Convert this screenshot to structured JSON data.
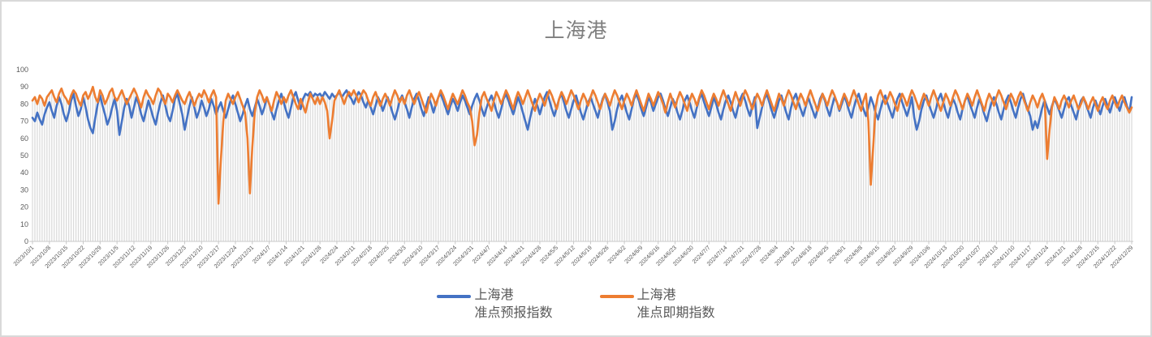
{
  "chart_data": {
    "type": "line",
    "title": "上海港",
    "xlabel": "",
    "ylabel": "",
    "ylim": [
      0,
      100
    ],
    "y_ticks": [
      0,
      10,
      20,
      30,
      40,
      50,
      60,
      70,
      80,
      90,
      100
    ],
    "grid": "vertical-drop-lines",
    "gridline_color": "#dadada",
    "axis_color": "#c8c8c8",
    "tick_label_color": "#595959",
    "legend_position": "bottom",
    "label_every_n_points": 7,
    "x_labels": [
      "2023/10/1",
      "2023/10/8",
      "2023/10/15",
      "2023/10/22",
      "2023/10/29",
      "2023/11/5",
      "2023/11/12",
      "2023/11/19",
      "2023/11/26",
      "2023/12/3",
      "2023/12/10",
      "2023/12/17",
      "2023/12/24",
      "2023/12/31",
      "2024/1/7",
      "2024/1/14",
      "2024/1/21",
      "2024/1/28",
      "2024/2/4",
      "2024/2/11",
      "2024/2/18",
      "2024/2/25",
      "2024/3/3",
      "2024/3/10",
      "2024/3/17",
      "2024/3/24",
      "2024/3/31",
      "2024/4/7",
      "2024/4/14",
      "2024/4/21",
      "2024/4/28",
      "2024/5/5",
      "2024/5/12",
      "2024/5/19",
      "2024/5/26",
      "2024/6/2",
      "2024/6/9",
      "2024/6/16",
      "2024/6/23",
      "2024/6/30",
      "2024/7/7",
      "2024/7/14",
      "2024/7/21",
      "2024/7/28",
      "2024/8/4",
      "2024/8/11",
      "2024/8/18",
      "2024/8/25",
      "2024/9/1",
      "2024/9/8",
      "2024/9/15",
      "2024/9/22",
      "2024/9/29",
      "2024/10/6",
      "2024/10/13",
      "2024/10/20",
      "2024/10/27",
      "2024/11/3",
      "2024/11/10",
      "2024/11/17",
      "2024/11/24",
      "2024/12/1",
      "2024/12/8",
      "2024/12/15",
      "2024/12/22",
      "2024/12/29"
    ],
    "series": [
      {
        "name": "上海港 准点预报指数",
        "color": "#4472c4",
        "values": [
          72,
          70,
          75,
          71,
          68,
          74,
          78,
          81,
          76,
          72,
          79,
          84,
          80,
          74,
          70,
          75,
          82,
          86,
          79,
          73,
          77,
          84,
          78,
          71,
          66,
          63,
          72,
          80,
          85,
          79,
          74,
          68,
          72,
          78,
          83,
          76,
          62,
          70,
          78,
          83,
          79,
          72,
          78,
          84,
          80,
          74,
          70,
          76,
          82,
          77,
          72,
          68,
          75,
          81,
          85,
          79,
          73,
          70,
          76,
          83,
          86,
          80,
          74,
          65,
          72,
          79,
          84,
          78,
          72,
          76,
          82,
          78,
          73,
          77,
          83,
          79,
          74,
          78,
          81,
          76,
          72,
          77,
          82,
          85,
          80,
          75,
          70,
          74,
          79,
          83,
          77,
          73,
          78,
          83,
          79,
          74,
          78,
          84,
          80,
          75,
          71,
          77,
          82,
          86,
          81,
          76,
          72,
          78,
          84,
          87,
          82,
          77,
          83,
          86,
          85,
          87,
          84,
          86,
          85,
          86,
          84,
          87,
          85,
          83,
          86,
          84,
          85,
          87,
          84,
          86,
          88,
          85,
          83,
          80,
          84,
          87,
          85,
          81,
          78,
          82,
          78,
          74,
          79,
          84,
          81,
          76,
          80,
          84,
          80,
          75,
          71,
          76,
          82,
          85,
          81,
          77,
          72,
          78,
          83,
          86,
          82,
          77,
          73,
          79,
          84,
          80,
          75,
          80,
          84,
          86,
          82,
          78,
          74,
          79,
          83,
          80,
          76,
          81,
          85,
          82,
          78,
          74,
          79,
          83,
          86,
          82,
          77,
          73,
          78,
          82,
          85,
          81,
          76,
          72,
          77,
          83,
          86,
          82,
          78,
          74,
          79,
          84,
          80,
          75,
          70,
          65,
          72,
          78,
          83,
          79,
          74,
          79,
          84,
          87,
          82,
          77,
          73,
          78,
          83,
          86,
          81,
          76,
          72,
          77,
          82,
          85,
          80,
          75,
          71,
          76,
          81,
          84,
          80,
          76,
          72,
          78,
          83,
          86,
          81,
          76,
          65,
          70,
          77,
          82,
          85,
          80,
          75,
          71,
          77,
          83,
          86,
          82,
          77,
          73,
          78,
          84,
          81,
          76,
          80,
          84,
          86,
          82,
          77,
          73,
          78,
          83,
          80,
          75,
          71,
          76,
          82,
          85,
          81,
          76,
          72,
          78,
          83,
          86,
          81,
          77,
          73,
          78,
          84,
          80,
          75,
          71,
          77,
          82,
          85,
          81,
          76,
          72,
          78,
          83,
          86,
          82,
          77,
          73,
          79,
          84,
          66,
          72,
          78,
          83,
          86,
          81,
          76,
          72,
          77,
          82,
          85,
          80,
          75,
          71,
          78,
          83,
          86,
          81,
          77,
          73,
          78,
          84,
          80,
          76,
          72,
          77,
          83,
          86,
          82,
          77,
          73,
          79,
          84,
          81,
          76,
          80,
          85,
          81,
          76,
          72,
          78,
          83,
          86,
          81,
          77,
          73,
          78,
          84,
          80,
          75,
          71,
          77,
          82,
          85,
          80,
          76,
          72,
          78,
          83,
          86,
          81,
          77,
          73,
          78,
          84,
          72,
          65,
          70,
          77,
          82,
          85,
          80,
          76,
          72,
          77,
          83,
          86,
          81,
          76,
          72,
          78,
          83,
          80,
          75,
          71,
          77,
          82,
          85,
          80,
          76,
          72,
          78,
          83,
          79,
          74,
          70,
          76,
          81,
          84,
          80,
          75,
          71,
          77,
          82,
          85,
          81,
          76,
          72,
          78,
          83,
          86,
          81,
          77,
          73,
          65,
          70,
          66,
          72,
          78,
          82,
          78,
          74,
          79,
          83,
          80,
          76,
          72,
          77,
          82,
          84,
          79,
          75,
          71,
          77,
          82,
          84,
          80,
          76,
          72,
          78,
          82,
          78,
          74,
          79,
          83,
          79,
          75,
          80,
          84,
          80,
          76,
          81,
          84,
          79,
          75,
          84
        ]
      },
      {
        "name": "上海港 准点即期指数",
        "color": "#ed7d31",
        "values": [
          82,
          84,
          80,
          85,
          83,
          79,
          84,
          86,
          88,
          84,
          81,
          86,
          89,
          85,
          83,
          80,
          85,
          88,
          86,
          82,
          79,
          85,
          87,
          83,
          86,
          90,
          84,
          81,
          88,
          85,
          80,
          83,
          87,
          89,
          84,
          82,
          85,
          88,
          84,
          80,
          83,
          86,
          89,
          86,
          82,
          78,
          84,
          88,
          85,
          83,
          80,
          85,
          89,
          87,
          83,
          80,
          86,
          84,
          81,
          85,
          88,
          85,
          82,
          80,
          84,
          87,
          83,
          79,
          83,
          86,
          84,
          88,
          85,
          81,
          85,
          88,
          84,
          22,
          48,
          70,
          82,
          86,
          83,
          80,
          84,
          87,
          83,
          79,
          75,
          60,
          28,
          55,
          75,
          84,
          88,
          85,
          81,
          84,
          80,
          76,
          82,
          87,
          84,
          80,
          84,
          81,
          85,
          88,
          84,
          80,
          77,
          83,
          79,
          75,
          81,
          86,
          83,
          80,
          84,
          80,
          84,
          81,
          76,
          60,
          70,
          82,
          85,
          88,
          84,
          80,
          84,
          87,
          85,
          88,
          85,
          81,
          85,
          88,
          86,
          82,
          79,
          84,
          87,
          83,
          79,
          83,
          86,
          83,
          79,
          84,
          88,
          85,
          81,
          84,
          80,
          85,
          88,
          84,
          80,
          84,
          87,
          83,
          79,
          75,
          81,
          86,
          83,
          79,
          84,
          88,
          85,
          81,
          77,
          82,
          86,
          83,
          80,
          84,
          88,
          85,
          81,
          78,
          70,
          56,
          62,
          75,
          84,
          87,
          83,
          80,
          76,
          82,
          87,
          84,
          80,
          84,
          88,
          85,
          81,
          77,
          83,
          87,
          84,
          80,
          84,
          88,
          84,
          80,
          76,
          82,
          86,
          83,
          79,
          84,
          88,
          85,
          81,
          77,
          83,
          87,
          84,
          80,
          84,
          88,
          85,
          81,
          77,
          82,
          86,
          83,
          79,
          84,
          88,
          85,
          81,
          77,
          82,
          86,
          83,
          79,
          84,
          88,
          85,
          81,
          77,
          82,
          86,
          83,
          79,
          84,
          88,
          84,
          80,
          76,
          81,
          86,
          83,
          79,
          83,
          87,
          84,
          80,
          75,
          81,
          86,
          82,
          78,
          83,
          87,
          84,
          80,
          76,
          82,
          86,
          83,
          79,
          84,
          88,
          85,
          81,
          77,
          82,
          86,
          83,
          79,
          84,
          88,
          84,
          80,
          76,
          82,
          87,
          83,
          79,
          84,
          88,
          85,
          81,
          77,
          82,
          86,
          83,
          79,
          84,
          88,
          84,
          80,
          76,
          81,
          86,
          83,
          79,
          84,
          88,
          85,
          81,
          77,
          82,
          86,
          83,
          79,
          84,
          88,
          84,
          80,
          76,
          81,
          86,
          83,
          79,
          84,
          88,
          85,
          81,
          77,
          82,
          86,
          83,
          79,
          84,
          88,
          84,
          80,
          76,
          82,
          86,
          70,
          33,
          55,
          78,
          85,
          88,
          84,
          80,
          83,
          87,
          84,
          80,
          76,
          82,
          86,
          83,
          79,
          84,
          88,
          85,
          81,
          77,
          82,
          86,
          83,
          79,
          84,
          88,
          84,
          80,
          76,
          81,
          86,
          83,
          79,
          84,
          88,
          85,
          81,
          77,
          82,
          86,
          83,
          79,
          84,
          88,
          84,
          80,
          76,
          82,
          86,
          83,
          79,
          84,
          88,
          85,
          81,
          77,
          82,
          86,
          83,
          79,
          84,
          87,
          84,
          80,
          76,
          81,
          85,
          82,
          78,
          83,
          86,
          82,
          48,
          65,
          78,
          84,
          81,
          77,
          82,
          85,
          82,
          78,
          82,
          85,
          81,
          77,
          80,
          84,
          81,
          77,
          81,
          84,
          80,
          76,
          81,
          84,
          80,
          77,
          82,
          85,
          81,
          78,
          82,
          85,
          81,
          78,
          75,
          78
        ]
      }
    ]
  },
  "legend": {
    "items": [
      {
        "line1": "上海港",
        "line2": "准点预报指数",
        "color": "#4472c4"
      },
      {
        "line1": "上海港",
        "line2": "准点即期指数",
        "color": "#ed7d31"
      }
    ]
  }
}
